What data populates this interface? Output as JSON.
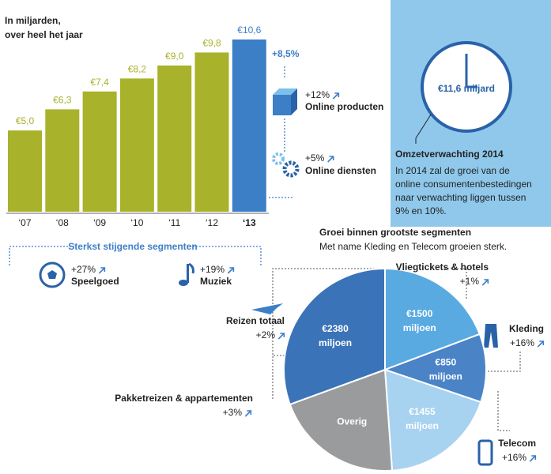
{
  "chart_data": [
    {
      "type": "bar",
      "subtitle": [
        "In miljarden,",
        "over heel het jaar"
      ],
      "categories": [
        "‘07",
        "‘08",
        "‘09",
        "‘10",
        "‘11",
        "‘12",
        "‘13"
      ],
      "values": [
        5.0,
        6.3,
        7.4,
        8.2,
        9.0,
        9.8,
        10.6
      ],
      "value_labels": [
        "€5,0",
        "€6,3",
        "€7,4",
        "€8,2",
        "€9,0",
        "€9,8",
        "€10,6"
      ],
      "colors": [
        "#a9b22b",
        "#a9b22b",
        "#a9b22b",
        "#a9b22b",
        "#a9b22b",
        "#a9b22b",
        "#3d7fc7"
      ]
    },
    {
      "type": "pie",
      "title": "Groei binnen grootste segmenten",
      "subtitle": "Met name Kleding en Telecom groeien sterk.",
      "categories": [
        "Vliegtickets & hotels",
        "Kleding",
        "Telecom",
        "Overig",
        "Reizen totaal"
      ],
      "values": [
        1500,
        850,
        1455,
        1600,
        2380
      ],
      "value_labels": [
        "€1500",
        "€850",
        "€1455",
        null,
        "€2380"
      ],
      "unit": "miljoen",
      "growth": [
        "+1%",
        "+16%",
        "+16%",
        null,
        "+2%"
      ],
      "colors": [
        "#5aaae2",
        "#4a83c6",
        "#a7d2f0",
        "#9a9b9d",
        "#3a73b8"
      ],
      "callouts": [
        {
          "label": "Pakketreizen & appartementen",
          "growth": "+3%"
        }
      ]
    }
  ],
  "growth": {
    "total": "+8,5%",
    "items": [
      {
        "change": "+12%",
        "label": "Online producten"
      },
      {
        "change": "+5%",
        "label": "Online diensten"
      }
    ]
  },
  "forecast": {
    "amount": "€11,6 miljard",
    "title": "Omzetverwachting 2014",
    "text_lines": [
      "In 2014 zal de groei van de",
      "online consumentenbestedingen",
      "naar verwachting liggen tussen",
      "9% en 10%."
    ]
  },
  "segments": {
    "title": "Sterkst stijgende segmenten",
    "items": [
      {
        "change": "+27%",
        "label": "Speelgoed"
      },
      {
        "change": "+19%",
        "label": "Muziek"
      }
    ]
  }
}
